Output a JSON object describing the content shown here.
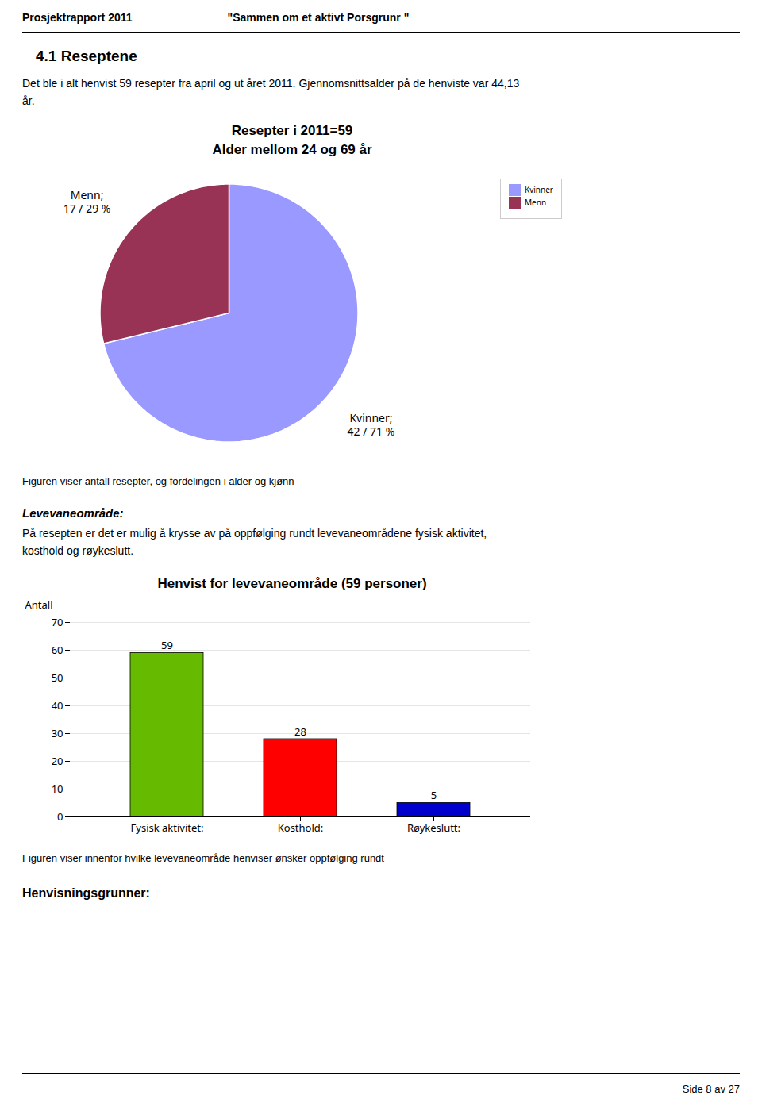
{
  "annotations": [
    "Prosjektrapport 2011",
    "\"Sammen om et aktivt Porsgrunr \"",
    "4.1  Reseptene",
    "Det ble i alt henvist 59 resepter fra april og ut året 2011. Gjennomsnittsalder på de henviste var  44,13\når.",
    "Levevaneområde:",
    "På resepten er det er mulig å krysse av på oppfølging rundt levevaneområdene fysisk aktivitet,\nkosthold og røykeslutt.",
    "Henvisningsgrunner:",
    "Side 8 av 27"
  ],
  "chart_data": [
    {
      "type": "pie",
      "title": "Resepter i 2011=59",
      "subtitle": "Alder mellom 24 og 69 år",
      "categories": [
        "Kvinner",
        "Menn"
      ],
      "values": [
        42,
        17
      ],
      "value_labels": [
        "Kvinner;\n42 / 71 %",
        "Menn;\n17 / 29 %"
      ],
      "colors": [
        "#9999FF",
        "#993355"
      ],
      "legend": "upper right",
      "data_labels": true,
      "caption": "Figuren viser antall resepter, og fordelingen i alder og kjønn"
    },
    {
      "type": "bar",
      "title": "Henvist for levevaneområde (59 personer)",
      "categories": [
        "Fysisk aktivitet:",
        "Kosthold:",
        "Røykeslutt:"
      ],
      "values": [
        59,
        28,
        5
      ],
      "colors": [
        "#66BB00",
        "#FF0000",
        "#0000CC"
      ],
      "ylabel": "Antall",
      "ylim": [
        0,
        70
      ],
      "yticks": [
        0,
        10,
        20,
        30,
        40,
        50,
        60,
        70
      ],
      "grid": true,
      "data_labels": true,
      "caption": "Figuren viser innenfor hvilke levevaneområde henviser ønsker oppfølging rundt"
    }
  ]
}
